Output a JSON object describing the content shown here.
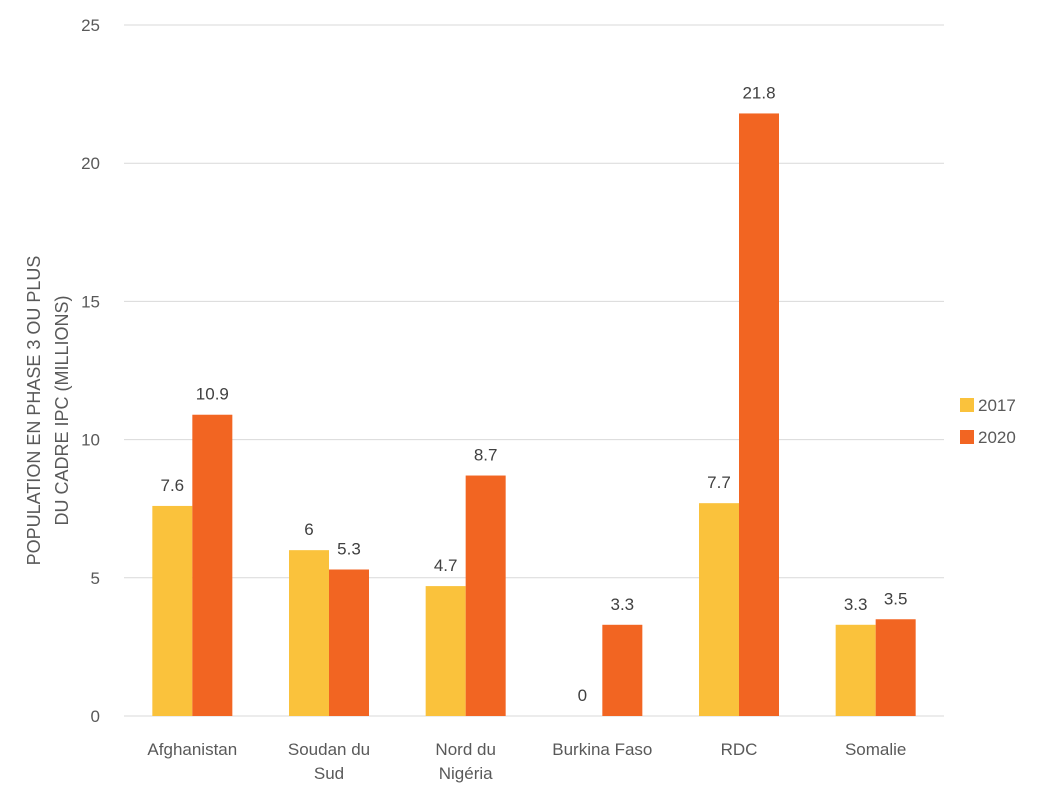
{
  "chart_data": {
    "type": "bar",
    "title": "",
    "xlabel": "",
    "ylabel": [
      "POPULATION EN PHASE 3 OU PLUS",
      "DU CADRE IPC (MILLIONS)"
    ],
    "categories": [
      [
        "Afghanistan"
      ],
      [
        "Soudan du",
        "Sud"
      ],
      [
        "Nord du",
        "Nigéria"
      ],
      [
        "Burkina Faso"
      ],
      [
        "RDC"
      ],
      [
        "Somalie"
      ]
    ],
    "series": [
      {
        "name": "2017",
        "color": "#fac23c",
        "values": [
          7.6,
          6,
          4.7,
          0,
          7.7,
          3.3
        ]
      },
      {
        "name": "2020",
        "color": "#f26522",
        "values": [
          10.9,
          5.3,
          8.7,
          3.3,
          21.8,
          3.5
        ]
      }
    ],
    "ylim": [
      0,
      25
    ],
    "yticks": [
      0,
      5,
      10,
      15,
      20,
      25
    ],
    "grid": true,
    "legend_position": "right",
    "data_labels": true
  }
}
